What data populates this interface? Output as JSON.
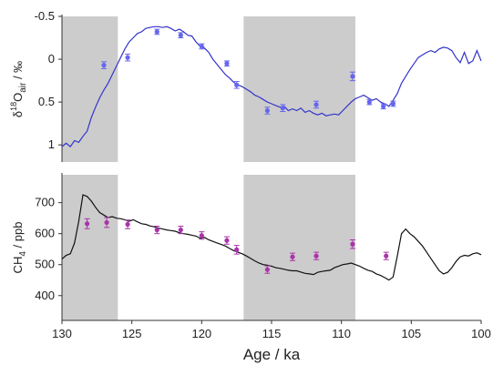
{
  "chart_data": [
    {
      "type": "line",
      "ylabel": {
        "base": "δ",
        "sup": "18",
        "main": "O",
        "sub": "air",
        "unit": " / ‰"
      },
      "ylim": [
        1.2,
        -0.5
      ],
      "y_inverted": true,
      "yticks": [
        -0.5,
        0,
        0.5,
        1
      ],
      "ytick_labels": [
        "-0.5",
        "0",
        "0.5",
        "1"
      ],
      "xlim": [
        130,
        100
      ],
      "shaded_intervals": [
        [
          130,
          126
        ],
        [
          117,
          109
        ]
      ],
      "colors": {
        "line": "#3333cc",
        "points": "#6666ee",
        "shade": "#cccccc"
      },
      "series": [
        {
          "kind": "line",
          "x": [
            130,
            129.7,
            129.4,
            129.1,
            128.8,
            128.5,
            128.2,
            127.9,
            127.6,
            127.3,
            127,
            126.7,
            126.4,
            126.1,
            125.8,
            125.5,
            125.2,
            124.9,
            124.6,
            124.3,
            124,
            123.7,
            123.4,
            123.1,
            122.8,
            122.5,
            122.2,
            121.9,
            121.6,
            121.3,
            121,
            120.7,
            120.4,
            120.1,
            119.8,
            119.5,
            119.2,
            118.9,
            118.6,
            118.3,
            118,
            117.7,
            117.4,
            117.1,
            116.8,
            116.5,
            116.2,
            115.9,
            115.6,
            115.3,
            115,
            114.7,
            114.4,
            114.1,
            113.8,
            113.5,
            113.2,
            112.9,
            112.6,
            112.3,
            112,
            111.7,
            111.4,
            111.1,
            110.8,
            110.5,
            110.2,
            109.9,
            109.6,
            109.3,
            109,
            108.7,
            108.4,
            108.1,
            107.8,
            107.5,
            107.2,
            106.9,
            106.6,
            106.3,
            106,
            105.7,
            105.4,
            105.1,
            104.8,
            104.5,
            104.2,
            103.9,
            103.6,
            103.3,
            103,
            102.7,
            102.4,
            102.1,
            101.8,
            101.5,
            101.2,
            100.9,
            100.6,
            100.3,
            100
          ],
          "y": [
            1.02,
            0.98,
            1.02,
            0.95,
            0.97,
            0.9,
            0.84,
            0.68,
            0.56,
            0.45,
            0.36,
            0.28,
            0.18,
            0.08,
            -0.02,
            -0.12,
            -0.2,
            -0.25,
            -0.3,
            -0.32,
            -0.36,
            -0.37,
            -0.38,
            -0.38,
            -0.37,
            -0.38,
            -0.36,
            -0.33,
            -0.35,
            -0.32,
            -0.28,
            -0.27,
            -0.2,
            -0.15,
            -0.13,
            -0.08,
            0.0,
            0.06,
            0.12,
            0.18,
            0.22,
            0.27,
            0.3,
            0.32,
            0.35,
            0.38,
            0.42,
            0.44,
            0.47,
            0.5,
            0.52,
            0.54,
            0.56,
            0.55,
            0.6,
            0.58,
            0.6,
            0.57,
            0.62,
            0.6,
            0.63,
            0.65,
            0.63,
            0.66,
            0.65,
            0.64,
            0.65,
            0.6,
            0.55,
            0.5,
            0.46,
            0.44,
            0.42,
            0.45,
            0.48,
            0.46,
            0.5,
            0.52,
            0.55,
            0.48,
            0.4,
            0.28,
            0.2,
            0.12,
            0.05,
            -0.02,
            -0.05,
            -0.08,
            -0.1,
            -0.08,
            -0.12,
            -0.14,
            -0.13,
            -0.1,
            -0.02,
            0.04,
            -0.08,
            0.05,
            0.02,
            -0.1,
            0.02
          ]
        },
        {
          "kind": "points",
          "x": [
            127,
            125.3,
            123.2,
            121.5,
            120,
            118.2,
            117.5,
            115.3,
            114.2,
            111.8,
            109.2,
            108,
            107,
            106.3
          ],
          "y": [
            0.07,
            -0.02,
            -0.32,
            -0.28,
            -0.15,
            0.05,
            0.3,
            0.6,
            0.57,
            0.53,
            0.2,
            0.5,
            0.55,
            0.52
          ],
          "err": [
            0.04,
            0.04,
            0.03,
            0.03,
            0.03,
            0.03,
            0.04,
            0.04,
            0.04,
            0.04,
            0.05,
            0.03,
            0.03,
            0.03
          ]
        }
      ]
    },
    {
      "type": "line",
      "ylabel": {
        "main": "CH",
        "sub": "4",
        "unit": " / ppb"
      },
      "ylim": [
        320,
        790
      ],
      "yticks": [
        400,
        500,
        600,
        700
      ],
      "ytick_labels": [
        "400",
        "500",
        "600",
        "700"
      ],
      "xlim": [
        130,
        100
      ],
      "xticks": [
        130,
        125,
        120,
        115,
        110,
        105,
        100
      ],
      "xtick_labels": [
        "130",
        "125",
        "120",
        "115",
        "110",
        "105",
        "100"
      ],
      "xlabel": "Age / ka",
      "shaded_intervals": [
        [
          130,
          126
        ],
        [
          117,
          109
        ]
      ],
      "colors": {
        "line": "#111111",
        "points": "#aa33aa",
        "shade": "#cccccc"
      },
      "series": [
        {
          "kind": "line",
          "x": [
            130,
            129.7,
            129.4,
            129.1,
            128.8,
            128.5,
            128.2,
            127.9,
            127.6,
            127.3,
            127,
            126.7,
            126.4,
            126.1,
            125.8,
            125.5,
            125.2,
            124.9,
            124.6,
            124.3,
            124,
            123.7,
            123.4,
            123.1,
            122.8,
            122.5,
            122.2,
            121.9,
            121.6,
            121.3,
            121,
            120.7,
            120.4,
            120.1,
            119.8,
            119.5,
            119.2,
            118.9,
            118.6,
            118.3,
            118,
            117.7,
            117.4,
            117.1,
            116.8,
            116.5,
            116.2,
            115.9,
            115.6,
            115.3,
            115,
            114.7,
            114.4,
            114.1,
            113.8,
            113.5,
            113.2,
            112.9,
            112.6,
            112.3,
            112,
            111.7,
            111.4,
            111.1,
            110.8,
            110.5,
            110.2,
            109.9,
            109.6,
            109.3,
            109,
            108.7,
            108.4,
            108.1,
            107.8,
            107.5,
            107.2,
            106.9,
            106.6,
            106.3,
            106,
            105.7,
            105.4,
            105.1,
            104.8,
            104.5,
            104.2,
            103.9,
            103.6,
            103.3,
            103,
            102.7,
            102.4,
            102.1,
            101.8,
            101.5,
            101.2,
            100.9,
            100.6,
            100.3,
            100
          ],
          "y": [
            518,
            530,
            535,
            570,
            640,
            725,
            720,
            705,
            685,
            668,
            660,
            652,
            655,
            650,
            648,
            645,
            640,
            645,
            638,
            632,
            630,
            625,
            622,
            618,
            615,
            612,
            610,
            608,
            603,
            600,
            598,
            595,
            592,
            585,
            588,
            580,
            575,
            570,
            565,
            560,
            552,
            545,
            540,
            535,
            528,
            520,
            512,
            505,
            500,
            498,
            495,
            490,
            488,
            485,
            482,
            480,
            480,
            476,
            472,
            470,
            468,
            475,
            478,
            480,
            482,
            490,
            495,
            500,
            502,
            505,
            500,
            495,
            488,
            482,
            478,
            470,
            465,
            458,
            450,
            460,
            528,
            600,
            615,
            600,
            590,
            575,
            560,
            540,
            520,
            500,
            480,
            470,
            475,
            490,
            510,
            525,
            530,
            528,
            535,
            538,
            532
          ],
          "note_ignored": "descriptive only"
        },
        {
          "kind": "points",
          "x": [
            128.2,
            126.8,
            125.3,
            123.2,
            121.5,
            120,
            118.2,
            117.5,
            115.3,
            113.5,
            111.8,
            109.2,
            106.8
          ],
          "y": [
            632,
            636,
            630,
            612,
            612,
            594,
            578,
            548,
            484,
            525,
            528,
            566,
            528
          ],
          "err": [
            16,
            16,
            14,
            12,
            12,
            12,
            12,
            14,
            12,
            12,
            12,
            14,
            12
          ]
        }
      ]
    }
  ]
}
